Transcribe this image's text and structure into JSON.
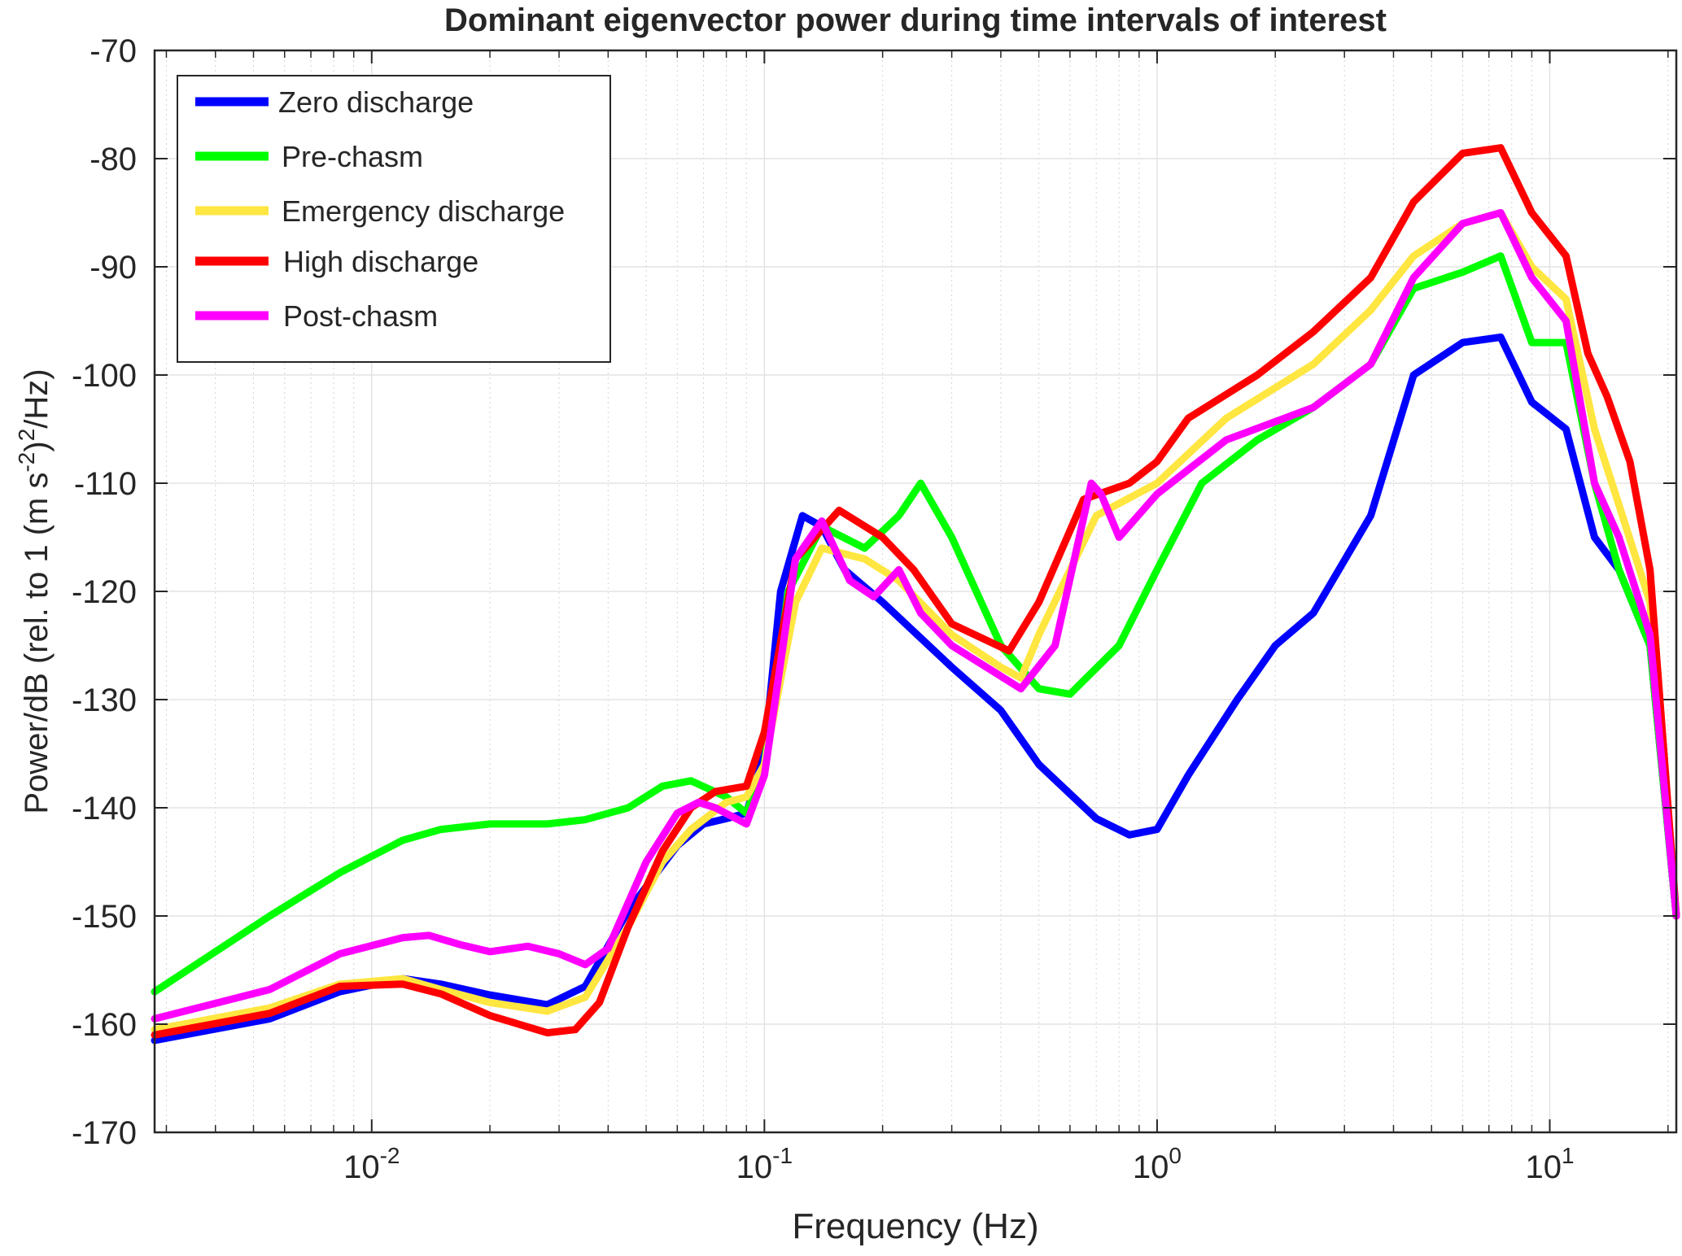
{
  "chart_data": {
    "type": "line",
    "title": "Dominant eigenvector power during time intervals of interest",
    "xlabel": "Frequency (Hz)",
    "ylabel_main": "Power/dB (rel. to 1 (m s",
    "ylabel_sup1": "-2",
    "ylabel_mid": ")",
    "ylabel_sup2": "2",
    "ylabel_end": "/Hz)",
    "x_scale": "log",
    "xlim": [
      0.0028,
      21
    ],
    "ylim": [
      -170,
      -70
    ],
    "grid": true,
    "legend_position": "top-left",
    "x_ticks": [
      {
        "value": 0.01,
        "base": "10",
        "exp": "-2"
      },
      {
        "value": 0.1,
        "base": "10",
        "exp": "-1"
      },
      {
        "value": 1,
        "base": "10",
        "exp": "0"
      },
      {
        "value": 10,
        "base": "10",
        "exp": "1"
      }
    ],
    "y_ticks": [
      -70,
      -80,
      -90,
      -100,
      -110,
      -120,
      -130,
      -140,
      -150,
      -160,
      -170
    ],
    "series": [
      {
        "name": "Zero discharge",
        "color": "#0000FF",
        "x": [
          0.0028,
          0.0055,
          0.0083,
          0.012,
          0.015,
          0.02,
          0.028,
          0.035,
          0.045,
          0.06,
          0.07,
          0.08,
          0.09,
          0.1,
          0.11,
          0.125,
          0.14,
          0.16,
          0.2,
          0.3,
          0.4,
          0.5,
          0.7,
          0.85,
          1.0,
          1.2,
          1.6,
          2.0,
          2.5,
          3.5,
          4.5,
          6,
          7.5,
          9,
          11,
          13,
          15,
          18,
          21
        ],
        "y": [
          -161.5,
          -159.5,
          -157,
          -155.8,
          -156.3,
          -157.3,
          -158.2,
          -156.5,
          -149.5,
          -143.5,
          -141.5,
          -141,
          -140.5,
          -135,
          -120,
          -113,
          -114,
          -118,
          -121,
          -127,
          -131,
          -136,
          -141,
          -142.5,
          -142,
          -137,
          -130,
          -125,
          -122,
          -113,
          -100,
          -97,
          -96.5,
          -102.5,
          -105,
          -115,
          -118,
          -125,
          -150
        ]
      },
      {
        "name": "Pre-chasm",
        "color": "#00FF00",
        "x": [
          0.0028,
          0.0055,
          0.0083,
          0.012,
          0.015,
          0.02,
          0.028,
          0.035,
          0.045,
          0.055,
          0.065,
          0.08,
          0.09,
          0.1,
          0.115,
          0.14,
          0.18,
          0.22,
          0.25,
          0.3,
          0.4,
          0.5,
          0.6,
          0.8,
          1.0,
          1.3,
          1.8,
          2.5,
          3.5,
          4.5,
          6,
          7.5,
          9,
          11,
          13,
          15,
          18,
          21
        ],
        "y": [
          -157,
          -150,
          -146,
          -143,
          -142,
          -141.5,
          -141.5,
          -141.1,
          -140,
          -138,
          -137.5,
          -139,
          -140.5,
          -136,
          -120,
          -114,
          -116,
          -113,
          -110,
          -115,
          -125,
          -129,
          -129.5,
          -125,
          -118,
          -110,
          -106,
          -103,
          -99,
          -92,
          -90.5,
          -89,
          -97,
          -97,
          -110,
          -118,
          -125,
          -150
        ]
      },
      {
        "name": "Emergency discharge",
        "color": "#FFE640",
        "x": [
          0.0028,
          0.0055,
          0.0083,
          0.012,
          0.015,
          0.02,
          0.028,
          0.035,
          0.045,
          0.055,
          0.065,
          0.08,
          0.09,
          0.1,
          0.12,
          0.14,
          0.18,
          0.22,
          0.3,
          0.4,
          0.45,
          0.5,
          0.7,
          1.0,
          1.5,
          2.5,
          3.5,
          4.5,
          6,
          7.5,
          9,
          11,
          13,
          15,
          18,
          21
        ],
        "y": [
          -160.5,
          -158.5,
          -156.3,
          -155.8,
          -156.8,
          -158,
          -158.8,
          -157.5,
          -151,
          -145,
          -142,
          -139.5,
          -139,
          -136,
          -121,
          -116,
          -117,
          -119,
          -124,
          -127,
          -128,
          -124,
          -113,
          -110,
          -104,
          -99,
          -94,
          -89,
          -86,
          -85,
          -90,
          -93,
          -105,
          -112,
          -121,
          -150
        ]
      },
      {
        "name": "High discharge",
        "color": "#FF0000",
        "x": [
          0.0028,
          0.0055,
          0.0083,
          0.012,
          0.015,
          0.02,
          0.028,
          0.033,
          0.038,
          0.045,
          0.055,
          0.065,
          0.075,
          0.09,
          0.1,
          0.12,
          0.155,
          0.2,
          0.24,
          0.3,
          0.42,
          0.5,
          0.65,
          0.85,
          1.0,
          1.2,
          1.8,
          2.5,
          3.5,
          4.5,
          6,
          7.5,
          9,
          11,
          12.5,
          14,
          16,
          18,
          21
        ],
        "y": [
          -161,
          -159,
          -156.5,
          -156.3,
          -157.2,
          -159.2,
          -160.8,
          -160.5,
          -158,
          -151,
          -144,
          -140,
          -138.5,
          -138,
          -133,
          -117,
          -112.5,
          -115,
          -118,
          -123,
          -125.5,
          -121,
          -111.5,
          -110,
          -108,
          -104,
          -100,
          -96,
          -91,
          -84,
          -79.5,
          -79,
          -85,
          -89,
          -98,
          -102,
          -108,
          -118,
          -150
        ]
      },
      {
        "name": "Post-chasm",
        "color": "#FF00FF",
        "x": [
          0.0028,
          0.0055,
          0.0083,
          0.012,
          0.014,
          0.017,
          0.02,
          0.025,
          0.03,
          0.035,
          0.04,
          0.05,
          0.06,
          0.068,
          0.075,
          0.09,
          0.1,
          0.12,
          0.14,
          0.165,
          0.19,
          0.22,
          0.25,
          0.3,
          0.45,
          0.55,
          0.68,
          0.72,
          0.8,
          1.0,
          1.5,
          2.5,
          3.5,
          4.5,
          6,
          7.5,
          9,
          11,
          13,
          15,
          18,
          21
        ],
        "y": [
          -159.5,
          -156.8,
          -153.5,
          -152,
          -151.8,
          -152.7,
          -153.3,
          -152.8,
          -153.5,
          -154.5,
          -153,
          -145,
          -140.5,
          -139.5,
          -140,
          -141.5,
          -137,
          -117,
          -113.5,
          -119,
          -120.5,
          -118,
          -122,
          -125,
          -129,
          -125,
          -110,
          -111,
          -115,
          -111,
          -106,
          -103,
          -99,
          -91,
          -86,
          -85,
          -91,
          -95,
          -110,
          -115,
          -124,
          -150
        ]
      }
    ]
  }
}
